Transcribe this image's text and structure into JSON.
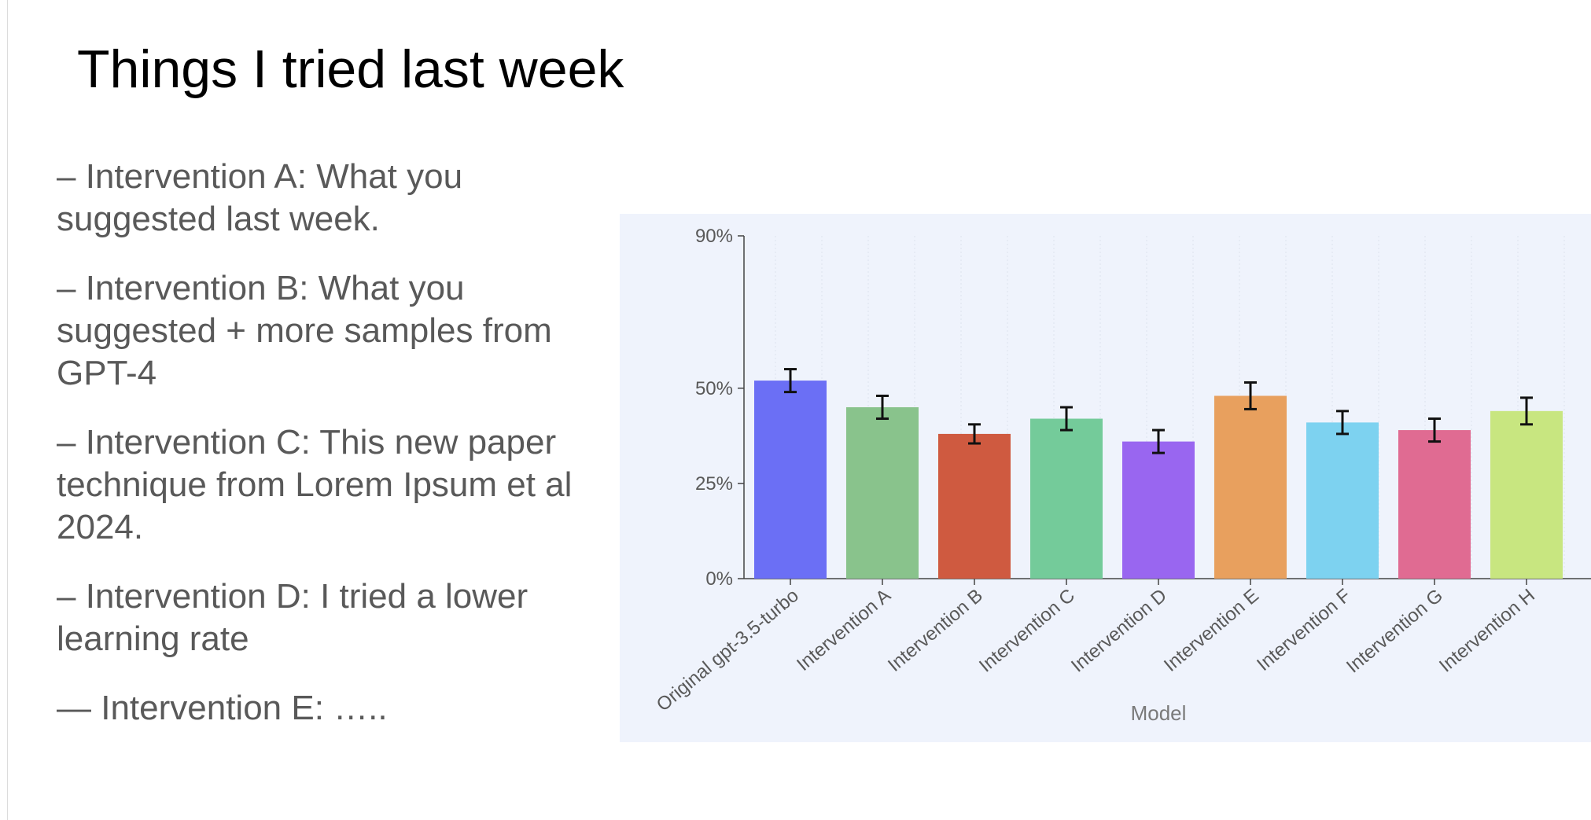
{
  "slide": {
    "title": "Things I tried last week",
    "bullets": [
      "– Intervention A: What you suggested last week.",
      "– Intervention B: What you suggested + more samples from GPT-4",
      "– Intervention C: This new paper technique from Lorem Ipsum et al 2024.",
      "– Intervention D: I tried a lower learning rate",
      "— Intervention E: ….."
    ]
  },
  "chart_data": {
    "type": "bar",
    "xlabel": "Model",
    "ylabel": "",
    "ylim": [
      0,
      0.9
    ],
    "y_ticks": [
      {
        "value": 0,
        "label": "0%"
      },
      {
        "value": 0.25,
        "label": "25%"
      },
      {
        "value": 0.5,
        "label": "50%"
      },
      {
        "value": 0.9,
        "label": "90%"
      }
    ],
    "grid": "vertical dotted",
    "categories": [
      "Original gpt-3.5-turbo",
      "Intervention A",
      "Intervention B",
      "Intervention C",
      "Intervention D",
      "Intervention E",
      "Intervention F",
      "Intervention G",
      "Intervention H"
    ],
    "values": [
      0.52,
      0.45,
      0.38,
      0.42,
      0.36,
      0.48,
      0.41,
      0.39,
      0.44
    ],
    "error": [
      0.03,
      0.03,
      0.025,
      0.03,
      0.03,
      0.035,
      0.03,
      0.03,
      0.035
    ],
    "colors": [
      "#6b6ff5",
      "#89c38c",
      "#cf5a40",
      "#74cb9a",
      "#9966f0",
      "#e8a05e",
      "#7dd2f0",
      "#e06b92",
      "#c8e680"
    ]
  }
}
